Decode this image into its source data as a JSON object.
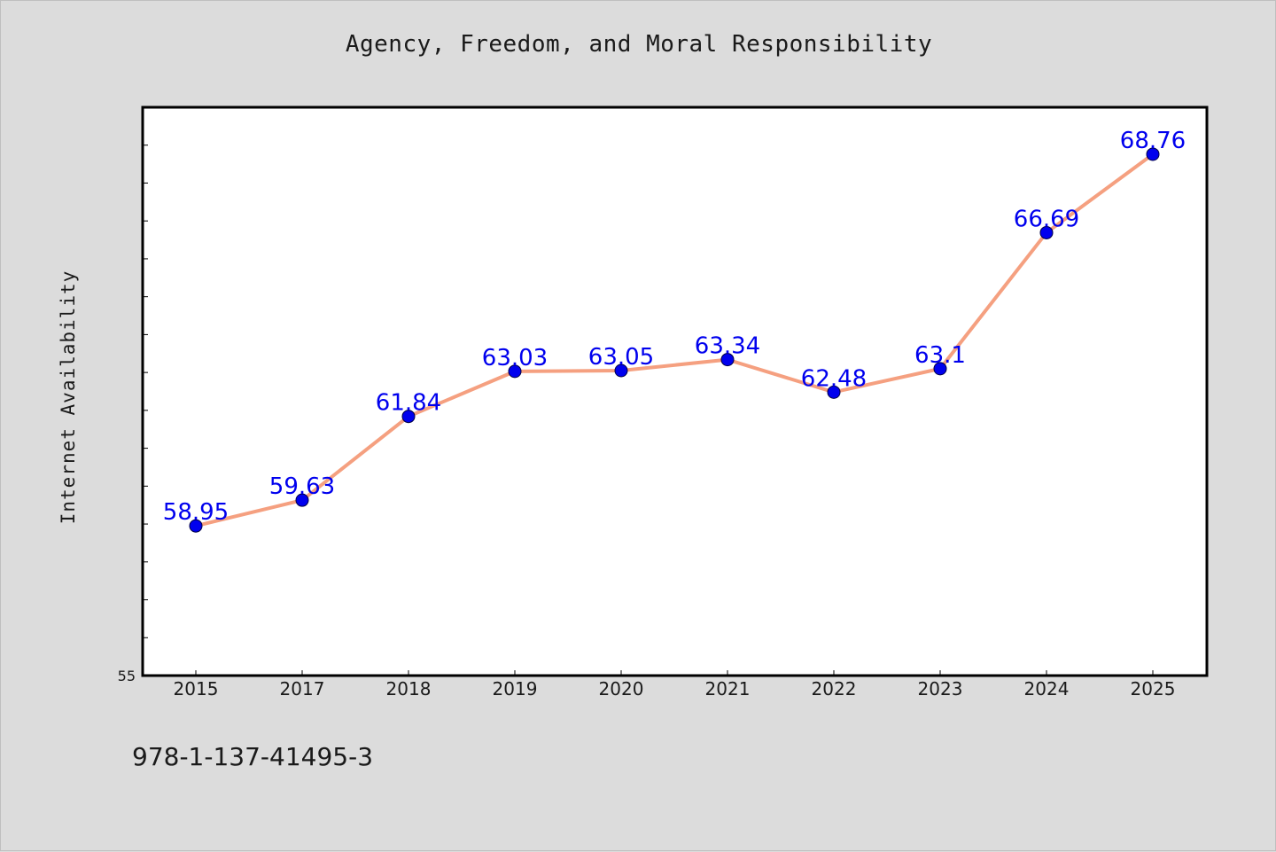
{
  "colors": {
    "background": "#dcdcdc",
    "plot_background": "#ffffff",
    "line": "#f5a080",
    "marker": "#0000ee",
    "data_label": "#0000ee",
    "axis": "#000000"
  },
  "chart_data": {
    "type": "line",
    "title": "Agency, Freedom, and Moral Responsibility",
    "xlabel": "",
    "ylabel": "Internet Availability",
    "categories": [
      "2015",
      "2017",
      "2018",
      "2019",
      "2020",
      "2021",
      "2022",
      "2023",
      "2024",
      "2025"
    ],
    "series": [
      {
        "values": [
          58.95,
          59.63,
          61.84,
          63.03,
          63.05,
          63.34,
          62.48,
          63.1,
          66.69,
          68.76
        ],
        "labels": [
          "58.95",
          "59.63",
          "61.84",
          "63.03",
          "63.05",
          "63.34",
          "62.48",
          "63.1",
          "66.69",
          "68.76"
        ]
      }
    ],
    "ylim": [
      55,
      70
    ],
    "y_tick_labels": [
      "55"
    ],
    "y_minor_step": 1,
    "grid": false,
    "legend": "none"
  },
  "caption": "978-1-137-41495-3"
}
